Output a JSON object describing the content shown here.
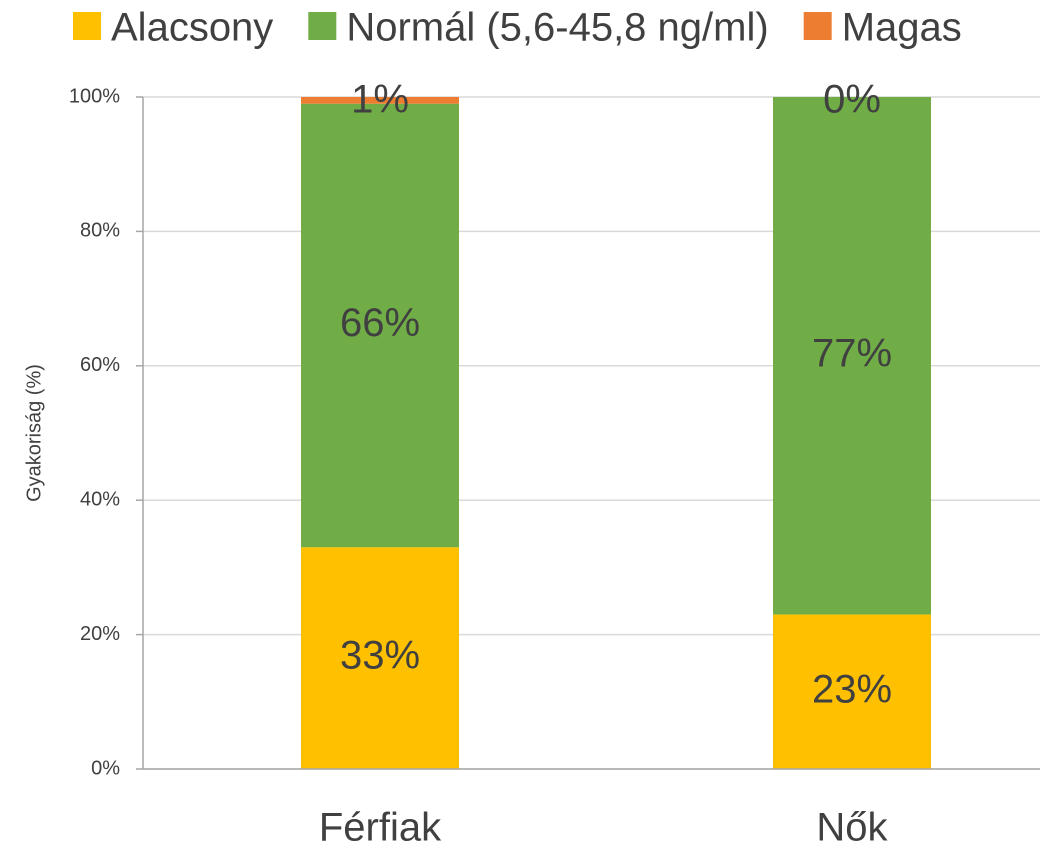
{
  "chart_data": {
    "type": "stacked_bar",
    "y_axis_label": "Gyakoriság (%)",
    "categories": [
      "Férfiak",
      "Nők"
    ],
    "series": [
      {
        "name": "Alacsony",
        "color": "#FFC000",
        "values": [
          33,
          23
        ],
        "value_labels": [
          "33%",
          "23%"
        ]
      },
      {
        "name": "Normál (5,6-45,8 ng/ml)",
        "color": "#70AD47",
        "values": [
          66,
          77
        ],
        "value_labels": [
          "66%",
          "77%"
        ]
      },
      {
        "name": "Magas",
        "color": "#ED7D31",
        "values": [
          1,
          0
        ],
        "value_labels": [
          "1%",
          "0%"
        ]
      }
    ],
    "ylim": [
      0,
      100
    ],
    "yticks": [
      {
        "value": 0,
        "label": "0%"
      },
      {
        "value": 20,
        "label": "20%"
      },
      {
        "value": 40,
        "label": "40%"
      },
      {
        "value": 60,
        "label": "60%"
      },
      {
        "value": 80,
        "label": "80%"
      },
      {
        "value": 100,
        "label": "100%"
      }
    ],
    "grid": true,
    "legend": "top"
  }
}
